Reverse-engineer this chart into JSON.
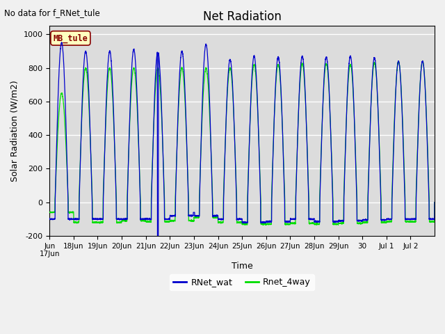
{
  "title": "Net Radiation",
  "xlabel": "Time",
  "ylabel": "Solar Radiation (W/m2)",
  "top_left_text": "No data for f_RNet_tule",
  "legend_label1": "RNet_wat",
  "legend_label2": "Rnet_4way",
  "box_label": "MB_tule",
  "ylim": [
    -200,
    1050
  ],
  "xlim": [
    0,
    16
  ],
  "color_line1": "#0000cc",
  "color_line2": "#00dd00",
  "background_color": "#dcdcdc",
  "grid_color": "#ffffff",
  "fig_background": "#f0f0f0",
  "box_fill": "#ffffc0",
  "box_edge": "#880000",
  "box_text_color": "#880000",
  "n_points": 5000,
  "yticks": [
    -200,
    0,
    200,
    400,
    600,
    800,
    1000
  ],
  "xtick_labels": [
    "Jun\n17Jun",
    "18Jun",
    "19Jun",
    "20Jun",
    "21Jun",
    "22Jun",
    "23Jun",
    "24Jun",
    "25Jun",
    "26Jun",
    "27Jun",
    "28Jun",
    "29Jun",
    "30",
    "Jul 1",
    "Jul 2"
  ]
}
